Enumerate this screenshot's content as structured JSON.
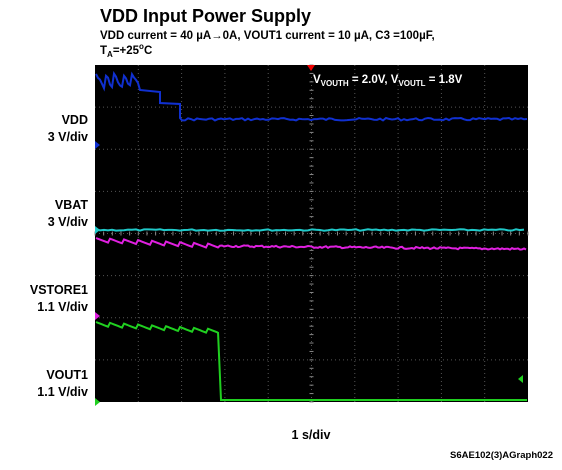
{
  "header": {
    "title": "VDD Input Power Supply",
    "subtitle_line1": "VDD current = 40 µA→0A, VOUT1 current = 10 µA, C3 =100µF,",
    "subtitle_line2": {
      "t": "T",
      "sub": "A",
      "rest": "=+25",
      "sup": "o",
      "unit": "C"
    }
  },
  "annotation": {
    "v1": "V",
    "sub1": "VOUTH",
    "mid": " = 2.0V, V",
    "sub2": "VOUTL",
    "end": " = 1.8V"
  },
  "channels": [
    {
      "name": "VDD",
      "scale": "3 V/div"
    },
    {
      "name": "VBAT",
      "scale": "3 V/div"
    },
    {
      "name": "VSTORE1",
      "scale": "1.1 V/div"
    },
    {
      "name": "VOUT1",
      "scale": "1.1 V/div"
    }
  ],
  "timebase": "1 s/div",
  "figure_id": "S6AE102(3)AGraph022"
}
